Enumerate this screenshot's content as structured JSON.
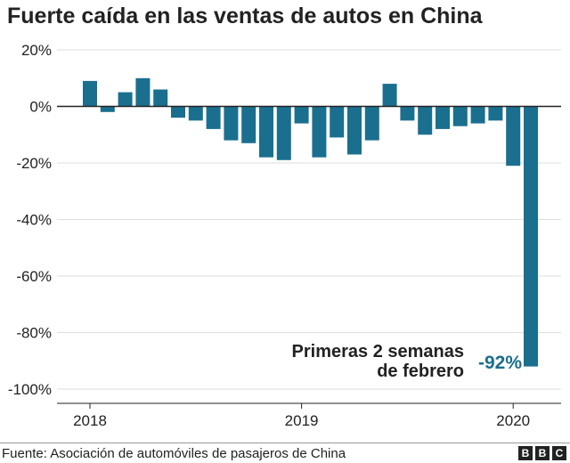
{
  "title": "Fuerte caída en las ventas de autos en China",
  "source": "Fuente: Asociación de automóviles de pasajeros de China",
  "logo": [
    "B",
    "B",
    "C"
  ],
  "colors": {
    "bar": "#1a6f8f",
    "highlight": "#1a6f8f",
    "text": "#222222",
    "grid": "#dddddd"
  },
  "chart_data": {
    "type": "bar",
    "title": "Fuerte caída en las ventas de autos en China",
    "ylim": [
      -100,
      20
    ],
    "y_ticks": [
      20,
      0,
      -20,
      -40,
      -60,
      -80,
      -100
    ],
    "y_tick_labels": [
      "20%",
      "0%",
      "-20%",
      "-40%",
      "-60%",
      "-80%",
      "-100%"
    ],
    "x_tick_labels": [
      {
        "label": "2018",
        "at_index": 0
      },
      {
        "label": "2019",
        "at_index": 12
      },
      {
        "label": "2020",
        "at_index": 24
      }
    ],
    "categories": [
      "2018-01",
      "2018-02",
      "2018-03",
      "2018-04",
      "2018-05",
      "2018-06",
      "2018-07",
      "2018-08",
      "2018-09",
      "2018-10",
      "2018-11",
      "2018-12",
      "2019-01",
      "2019-02",
      "2019-03",
      "2019-04",
      "2019-05",
      "2019-06",
      "2019-07",
      "2019-08",
      "2019-09",
      "2019-10",
      "2019-11",
      "2019-12",
      "2020-01",
      "2020-02"
    ],
    "values": [
      9,
      -2,
      5,
      10,
      6,
      -4,
      -5,
      -8,
      -12,
      -13,
      -18,
      -19,
      -6,
      -18,
      -11,
      -17,
      -12,
      8,
      -5,
      -10,
      -8,
      -7,
      -6,
      -5,
      -21,
      -92
    ],
    "annotation": {
      "line1": "Primeras 2 semanas",
      "line2": "de febrero",
      "value_label": "-92%"
    },
    "grid": true,
    "legend": "none"
  }
}
